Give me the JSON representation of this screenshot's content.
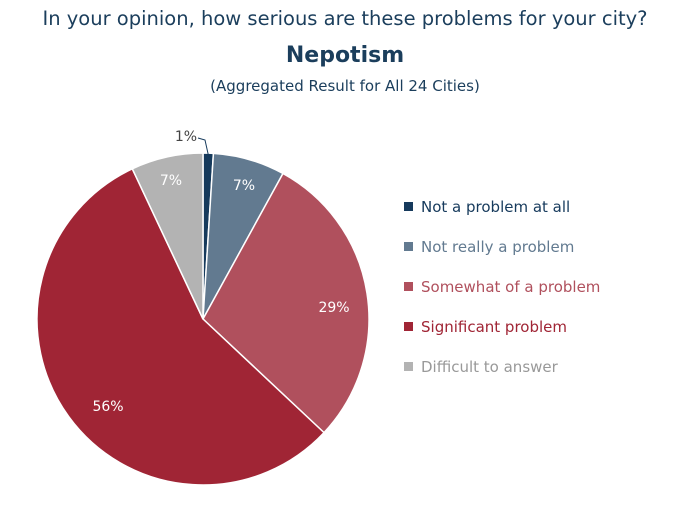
{
  "header": {
    "question": "In your opinion, how serious are these problems for your city?",
    "title": "Nepotism",
    "subtitle": "(Aggregated Result for All 24 Cities)"
  },
  "chart_data": {
    "type": "pie",
    "title": "Nepotism",
    "subtitle": "(Aggregated Result for All 24 Cities)",
    "legend_position": "right",
    "slices": [
      {
        "name": "Not a problem at all",
        "value": 1,
        "label": "1%",
        "color": "#163a5c",
        "label_color": "#444444",
        "legend_color": "#163a5c"
      },
      {
        "name": "Not really a problem",
        "value": 7,
        "label": "7%",
        "color": "#627a90",
        "label_color": "#ffffff",
        "legend_color": "#627a90"
      },
      {
        "name": "Somewhat of a problem",
        "value": 29,
        "label": "29%",
        "color": "#b0505d",
        "label_color": "#ffffff",
        "legend_color": "#b0505d"
      },
      {
        "name": "Significant problem",
        "value": 56,
        "label": "56%",
        "color": "#a02535",
        "label_color": "#ffffff",
        "legend_color": "#a02535"
      },
      {
        "name": "Difficult to answer",
        "value": 7,
        "label": "7%",
        "color": "#b3b3b3",
        "label_color": "#ffffff",
        "legend_color": "#999999"
      }
    ]
  }
}
